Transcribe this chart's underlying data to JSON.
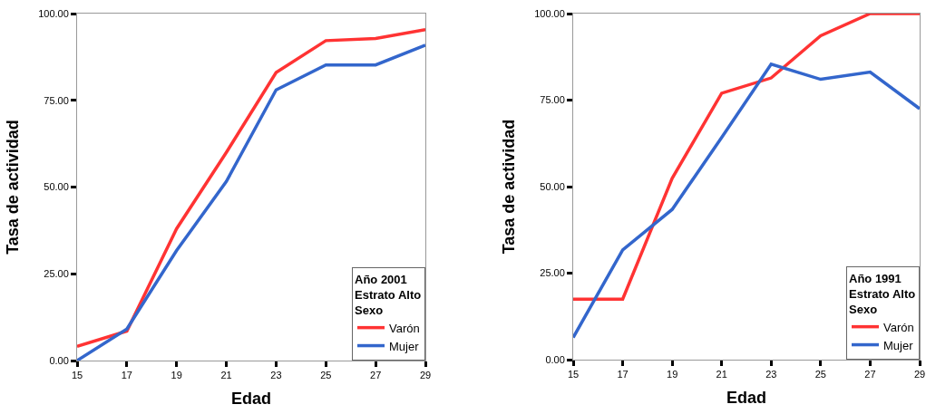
{
  "chart_data": [
    {
      "type": "line",
      "xlabel": "Edad",
      "ylabel": "Tasa de actividad",
      "legend_title": "Año 2001\nEstrato Alto\nSexo",
      "legend": "bottom right",
      "x": [
        15,
        17,
        19,
        21,
        23,
        25,
        27,
        29
      ],
      "series": [
        {
          "name": "Varón",
          "color": "#ff3333",
          "values": [
            4.1,
            8.5,
            38,
            60,
            83,
            92.2,
            92.8,
            95.4
          ]
        },
        {
          "name": "Mujer",
          "color": "#3366cc",
          "values": [
            0,
            9.1,
            31.7,
            51.6,
            78,
            85.2,
            85.2,
            90.9
          ]
        }
      ],
      "xlim": [
        15,
        29
      ],
      "xticks": [
        15,
        17,
        19,
        21,
        23,
        25,
        27,
        29
      ],
      "ylim": [
        0,
        100
      ],
      "yticks": [
        {
          "value": 0,
          "label": "0.00"
        },
        {
          "value": 25,
          "label": "25.00"
        },
        {
          "value": 50,
          "label": "50.00"
        },
        {
          "value": 75,
          "label": "75.00"
        },
        {
          "value": 100,
          "label": "100.00"
        }
      ]
    },
    {
      "type": "line",
      "xlabel": "Edad",
      "ylabel": "Tasa de actividad",
      "legend_title": "Año 1991\nEstrato Alto\nSexo",
      "legend": "bottom right",
      "x": [
        15,
        17,
        19,
        21,
        23,
        25,
        27,
        29
      ],
      "series": [
        {
          "name": "Varón",
          "color": "#ff3333",
          "values": [
            17.5,
            17.5,
            52.4,
            77,
            81.4,
            93.6,
            100,
            100
          ]
        },
        {
          "name": "Mujer",
          "color": "#3366cc",
          "values": [
            6.4,
            31.7,
            43.4,
            64.2,
            85.4,
            81,
            83.1,
            72.5
          ]
        }
      ],
      "xlim": [
        15,
        29
      ],
      "xticks": [
        15,
        17,
        19,
        21,
        23,
        25,
        27,
        29
      ],
      "ylim": [
        0,
        100
      ],
      "yticks": [
        {
          "value": 0,
          "label": "0.00"
        },
        {
          "value": 25,
          "label": "25.00"
        },
        {
          "value": 50,
          "label": "50.00"
        },
        {
          "value": 75,
          "label": "75.00"
        },
        {
          "value": 100,
          "label": "100.00"
        }
      ]
    }
  ]
}
